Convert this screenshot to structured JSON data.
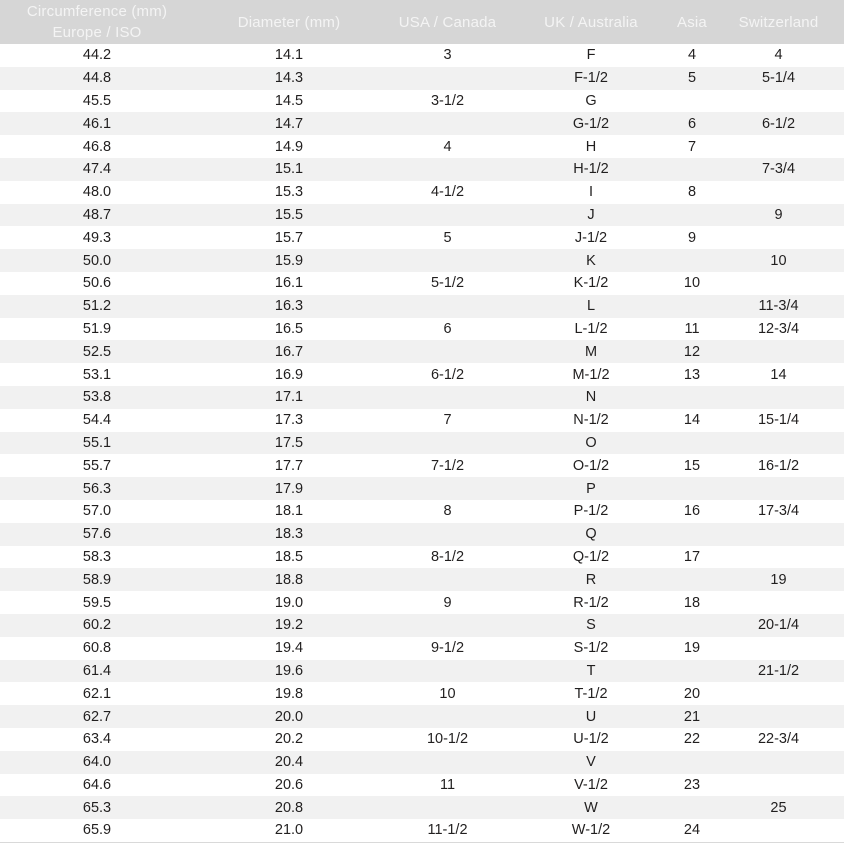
{
  "colors": {
    "header_bg": "#d6d6d6",
    "header_text": "#f4f4f4",
    "row_bg": "#ffffff",
    "row_alt_bg": "#f1f1f1",
    "cell_text": "#211f1f",
    "bottom_border": "#d9d9d9"
  },
  "table": {
    "header": {
      "circumference_line1": "Circumference (mm)",
      "circumference_line2": "Europe / ISO",
      "diameter": "Diameter (mm)",
      "usa_canada": "USA / Canada",
      "uk_australia": "UK / Australia",
      "asia": "Asia",
      "switzerland": "Switzerland"
    },
    "rows": [
      [
        "44.2",
        "14.1",
        "3",
        "F",
        "4",
        "4"
      ],
      [
        "44.8",
        "14.3",
        "",
        "F-1/2",
        "5",
        "5-1/4"
      ],
      [
        "45.5",
        "14.5",
        "3-1/2",
        "G",
        "",
        ""
      ],
      [
        "46.1",
        "14.7",
        "",
        "G-1/2",
        "6",
        "6-1/2"
      ],
      [
        "46.8",
        "14.9",
        "4",
        "H",
        "7",
        ""
      ],
      [
        "47.4",
        "15.1",
        "",
        "H-1/2",
        "",
        "7-3/4"
      ],
      [
        "48.0",
        "15.3",
        "4-1/2",
        "I",
        "8",
        ""
      ],
      [
        "48.7",
        "15.5",
        "",
        "J",
        "",
        "9"
      ],
      [
        "49.3",
        "15.7",
        "5",
        "J-1/2",
        "9",
        ""
      ],
      [
        "50.0",
        "15.9",
        "",
        "K",
        "",
        "10"
      ],
      [
        "50.6",
        "16.1",
        "5-1/2",
        "K-1/2",
        "10",
        ""
      ],
      [
        "51.2",
        "16.3",
        "",
        "L",
        "",
        "11-3/4"
      ],
      [
        "51.9",
        "16.5",
        "6",
        "L-1/2",
        "11",
        "12-3/4"
      ],
      [
        "52.5",
        "16.7",
        "",
        "M",
        "12",
        ""
      ],
      [
        "53.1",
        "16.9",
        "6-1/2",
        "M-1/2",
        "13",
        "14"
      ],
      [
        "53.8",
        "17.1",
        "",
        "N",
        "",
        ""
      ],
      [
        "54.4",
        "17.3",
        "7",
        "N-1/2",
        "14",
        "15-1/4"
      ],
      [
        "55.1",
        "17.5",
        "",
        "O",
        "",
        ""
      ],
      [
        "55.7",
        "17.7",
        "7-1/2",
        "O-1/2",
        "15",
        "16-1/2"
      ],
      [
        "56.3",
        "17.9",
        "",
        "P",
        "",
        ""
      ],
      [
        "57.0",
        "18.1",
        "8",
        "P-1/2",
        "16",
        "17-3/4"
      ],
      [
        "57.6",
        "18.3",
        "",
        "Q",
        "",
        ""
      ],
      [
        "58.3",
        "18.5",
        "8-1/2",
        "Q-1/2",
        "17",
        ""
      ],
      [
        "58.9",
        "18.8",
        "",
        "R",
        "",
        "19"
      ],
      [
        "59.5",
        "19.0",
        "9",
        "R-1/2",
        "18",
        ""
      ],
      [
        "60.2",
        "19.2",
        "",
        "S",
        "",
        "20-1/4"
      ],
      [
        "60.8",
        "19.4",
        "9-1/2",
        "S-1/2",
        "19",
        ""
      ],
      [
        "61.4",
        "19.6",
        "",
        "T",
        "",
        "21-1/2"
      ],
      [
        "62.1",
        "19.8",
        "10",
        "T-1/2",
        "20",
        ""
      ],
      [
        "62.7",
        "20.0",
        "",
        "U",
        "21",
        ""
      ],
      [
        "63.4",
        "20.2",
        "10-1/2",
        "U-1/2",
        "22",
        "22-3/4"
      ],
      [
        "64.0",
        "20.4",
        "",
        "V",
        "",
        ""
      ],
      [
        "64.6",
        "20.6",
        "11",
        "V-1/2",
        "23",
        ""
      ],
      [
        "65.3",
        "20.8",
        "",
        "W",
        "",
        "25"
      ],
      [
        "65.9",
        "21.0",
        "11-1/2",
        "W-1/2",
        "24",
        ""
      ]
    ]
  }
}
